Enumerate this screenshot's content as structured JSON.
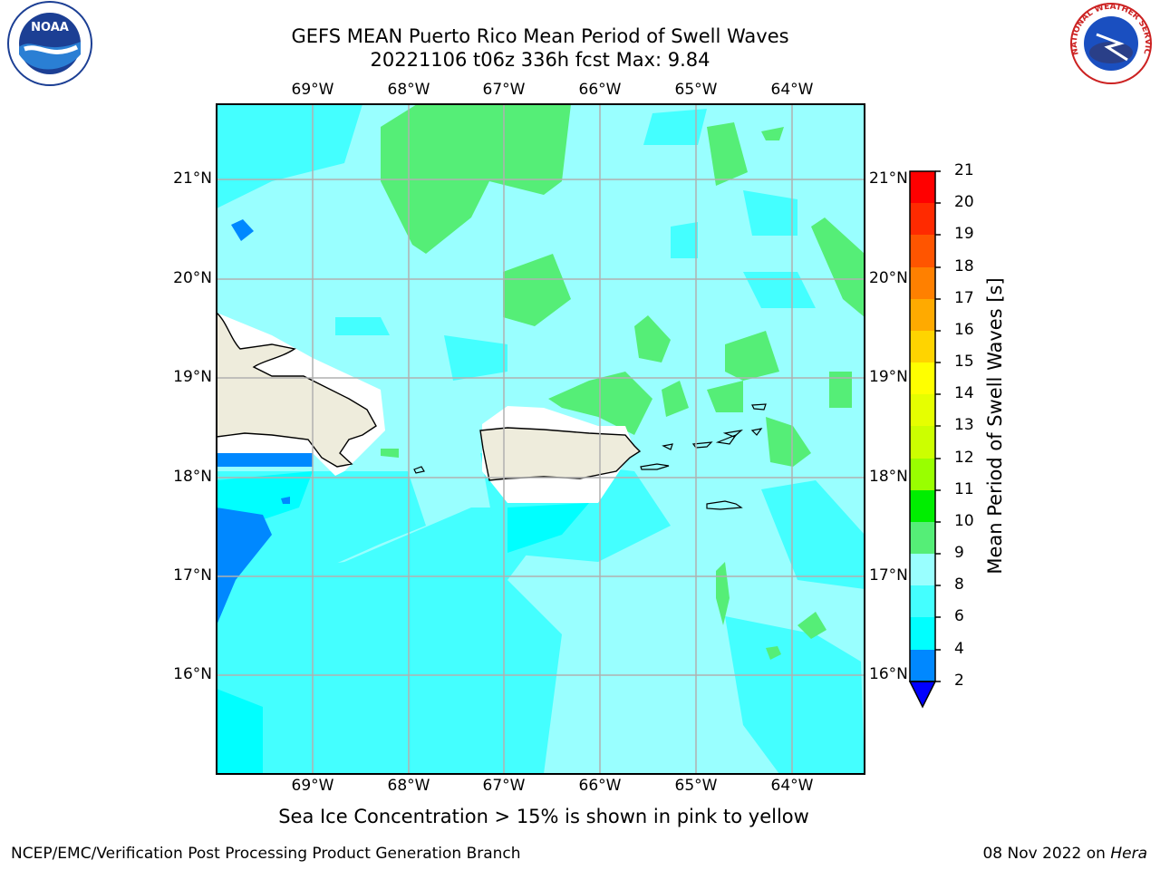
{
  "header": {
    "title_line1": "GEFS MEAN Puerto Rico Mean Period of Swell Waves",
    "title_line2": "20221106 t06z 336h fcst   Max: 9.84"
  },
  "map": {
    "lon_labels": [
      "69°W",
      "68°W",
      "67°W",
      "66°W",
      "65°W",
      "64°W"
    ],
    "lat_labels": [
      "21°N",
      "20°N",
      "19°N",
      "18°N",
      "17°N",
      "16°N"
    ]
  },
  "colorbar": {
    "label": "Mean Period of Swell Waves [s]",
    "ticks": [
      "21",
      "20",
      "19",
      "18",
      "17",
      "16",
      "15",
      "14",
      "13",
      "12",
      "11",
      "10",
      "9",
      "8",
      "6",
      "4",
      "2"
    ],
    "colors": [
      "#ff0000",
      "#ff2a00",
      "#ff5500",
      "#ff8000",
      "#ffaa00",
      "#ffd400",
      "#ffff00",
      "#e6ff00",
      "#ccff00",
      "#99ff00",
      "#44dd00",
      "#00ee00",
      "#55ee77",
      "#99ffff",
      "#44ffff",
      "#00eeff",
      "#0088ff",
      "#0000ff"
    ]
  },
  "logos": {
    "noaa_text": "NOAA",
    "nws_text": "NATIONAL WEATHER SERVICE"
  },
  "footer": {
    "note": "Sea Ice Concentration > 15% is shown in pink to yellow",
    "left": "NCEP/EMC/Verification Post Processing Product Generation Branch",
    "right_date": "08 Nov 2022 on ",
    "right_host": "Hera"
  }
}
